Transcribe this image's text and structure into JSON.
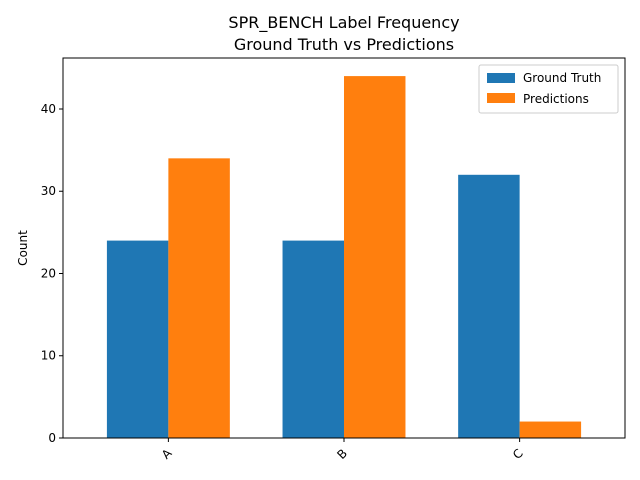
{
  "chart_data": {
    "type": "bar",
    "title": "SPR_BENCH Label Frequency",
    "subtitle": "Ground Truth vs Predictions",
    "xlabel": "",
    "ylabel": "Count",
    "categories": [
      "A",
      "B",
      "C"
    ],
    "series": [
      {
        "name": "Ground Truth",
        "values": [
          24,
          24,
          32
        ],
        "color": "#1f77b4"
      },
      {
        "name": "Predictions",
        "values": [
          34,
          44,
          2
        ],
        "color": "#ff7f0e"
      }
    ],
    "ylim": [
      0,
      46.2
    ],
    "yticks": [
      0,
      10,
      20,
      30,
      40
    ],
    "grid": false,
    "legend_position": "top-right"
  }
}
